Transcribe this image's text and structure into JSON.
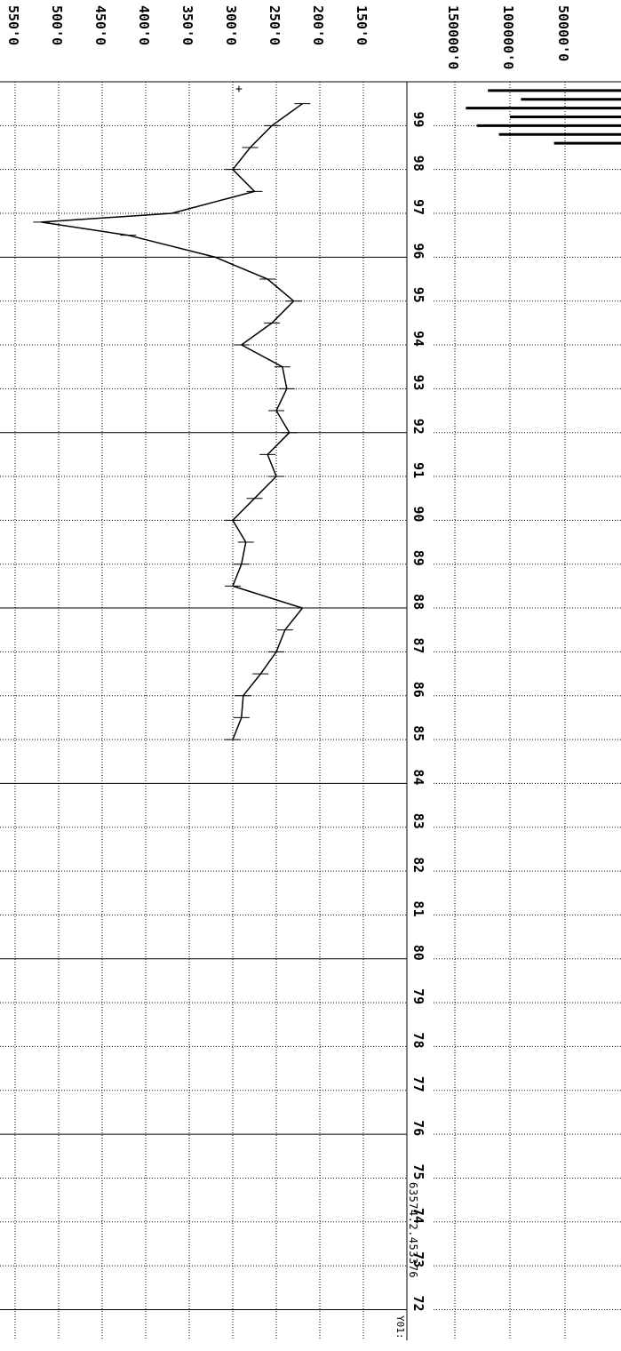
{
  "chart_data": [
    {
      "type": "line",
      "title": "",
      "xlabel": "",
      "ylabel": "",
      "ylim": [
        150,
        550
      ],
      "y_ticks": [
        "550'0",
        "500'0",
        "450'0",
        "400'0",
        "350'0",
        "300'0",
        "250'0",
        "200'0",
        "150'0"
      ],
      "x_ticks": [
        "72",
        "73",
        "74",
        "75",
        "76",
        "77",
        "78",
        "79",
        "80",
        "81",
        "82",
        "83",
        "84",
        "85",
        "86",
        "87",
        "88",
        "89",
        "90",
        "91",
        "92",
        "93",
        "94",
        "95",
        "96",
        "97",
        "98",
        "99"
      ],
      "grid": true,
      "series": [
        {
          "x": [
            85,
            85.5,
            86,
            86.5,
            87,
            87.5,
            88,
            88.5,
            89,
            89.5,
            90,
            90.5,
            91,
            91.5,
            92,
            92.5,
            93,
            93.5,
            94,
            94.5,
            95,
            95.5,
            96,
            96.5,
            96.8,
            97,
            97.5,
            98,
            98.5,
            99,
            99.5
          ],
          "values": [
            300,
            290,
            288,
            268,
            250,
            240,
            220,
            300,
            290,
            285,
            300,
            275,
            250,
            260,
            235,
            250,
            238,
            243,
            290,
            255,
            230,
            260,
            320,
            420,
            520,
            370,
            275,
            300,
            280,
            255,
            220
          ]
        }
      ]
    },
    {
      "type": "line",
      "title": "",
      "xlabel": "",
      "ylabel": "",
      "y_ticks": [
        "150000'0",
        "100000'0",
        "50000'0"
      ],
      "grid": true,
      "series": [
        {
          "x": [
            98.6,
            98.8,
            99,
            99.2,
            99.4,
            99.6,
            99.8
          ],
          "values": [
            60000,
            110000,
            130000,
            100000,
            140000,
            90000,
            120000
          ]
        }
      ]
    }
  ],
  "footer": {
    "label": "Y01:",
    "readout": "63574.2.453376"
  }
}
